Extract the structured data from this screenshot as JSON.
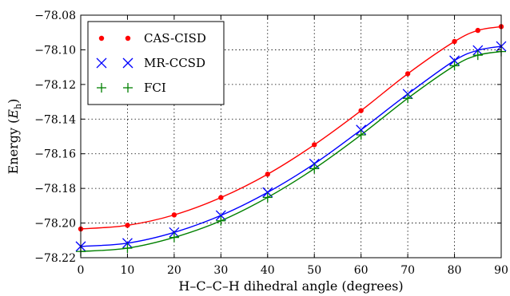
{
  "chart_data": {
    "type": "line",
    "title": "",
    "xlabel": "H–C–C–H dihedral angle (degrees)",
    "ylabel": "Energy (E_h)",
    "ylabel_parts": [
      "Energy (",
      "E",
      "h",
      ")"
    ],
    "xlim": [
      0,
      90
    ],
    "ylim": [
      -78.22,
      -78.08
    ],
    "xticks": [
      0,
      10,
      20,
      30,
      40,
      50,
      60,
      70,
      80,
      90
    ],
    "xtick_labels": [
      "0",
      "10",
      "20",
      "30",
      "40",
      "50",
      "60",
      "70",
      "80",
      "90"
    ],
    "yticks": [
      -78.22,
      -78.2,
      -78.18,
      -78.16,
      -78.14,
      -78.12,
      -78.1,
      -78.08
    ],
    "ytick_labels": [
      "−78.22",
      "−78.20",
      "−78.18",
      "−78.16",
      "−78.14",
      "−78.12",
      "−78.10",
      "−78.08"
    ],
    "grid": true,
    "legend_position": "top-left",
    "x": [
      0,
      10,
      20,
      30,
      40,
      50,
      60,
      70,
      80,
      85,
      90
    ],
    "series": [
      {
        "name": "CAS-CISD",
        "color": "#ff0000",
        "marker": "circle",
        "values": [
          -78.2034,
          -78.2013,
          -78.1953,
          -78.1853,
          -78.1718,
          -78.1548,
          -78.1351,
          -78.1138,
          -78.0952,
          -78.0888,
          -78.0866
        ]
      },
      {
        "name": "MR-CCSD",
        "color": "#0000ff",
        "marker": "x",
        "values": [
          -78.2135,
          -78.2116,
          -78.2054,
          -78.1956,
          -78.1823,
          -78.1658,
          -78.1462,
          -78.1255,
          -78.1062,
          -78.1003,
          -78.098
        ]
      },
      {
        "name": "FCI",
        "color": "#008000",
        "marker": "plus",
        "values": [
          -78.2164,
          -78.2145,
          -78.2083,
          -78.1987,
          -78.1852,
          -78.1686,
          -78.1491,
          -78.128,
          -78.1092,
          -78.1031,
          -78.101
        ]
      }
    ]
  }
}
